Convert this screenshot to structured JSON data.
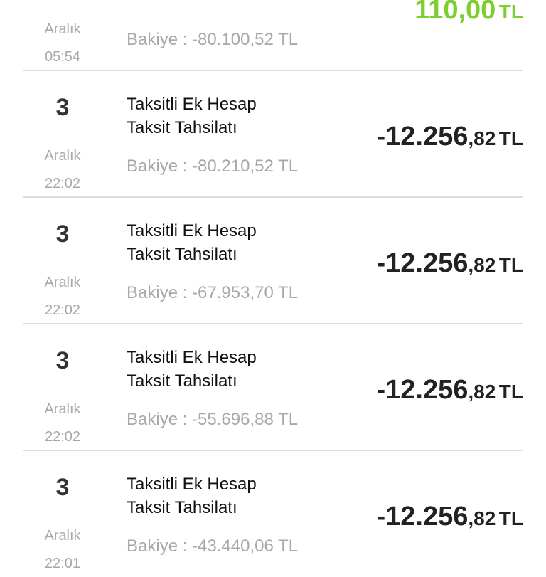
{
  "transactions": [
    {
      "month": "Aralık",
      "time": "05:54",
      "balance": "Bakiye : -80.100,52 TL",
      "amount": {
        "main": "110,00",
        "currency": "TL"
      },
      "positive": true
    },
    {
      "day": "3",
      "month": "Aralık",
      "time": "22:02",
      "title_lines": [
        "Taksitli Ek Hesap",
        "Taksit Tahsilatı"
      ],
      "balance": "Bakiye : -80.210,52 TL",
      "amount": {
        "main": "-12.256",
        "cents": ",82",
        "currency": "TL"
      }
    },
    {
      "day": "3",
      "month": "Aralık",
      "time": "22:02",
      "title_lines": [
        "Taksitli Ek Hesap",
        "Taksit Tahsilatı"
      ],
      "balance": "Bakiye : -67.953,70 TL",
      "amount": {
        "main": "-12.256",
        "cents": ",82",
        "currency": "TL"
      }
    },
    {
      "day": "3",
      "month": "Aralık",
      "time": "22:02",
      "title_lines": [
        "Taksitli Ek Hesap",
        "Taksit Tahsilatı"
      ],
      "balance": "Bakiye : -55.696,88 TL",
      "amount": {
        "main": "-12.256",
        "cents": ",82",
        "currency": "TL"
      }
    },
    {
      "day": "3",
      "month": "Aralık",
      "time": "22:01",
      "title_lines": [
        "Taksitli Ek Hesap",
        "Taksit Tahsilatı"
      ],
      "balance": "Bakiye : -43.440,06 TL",
      "amount": {
        "main": "-12.256",
        "cents": ",82",
        "currency": "TL"
      }
    }
  ]
}
